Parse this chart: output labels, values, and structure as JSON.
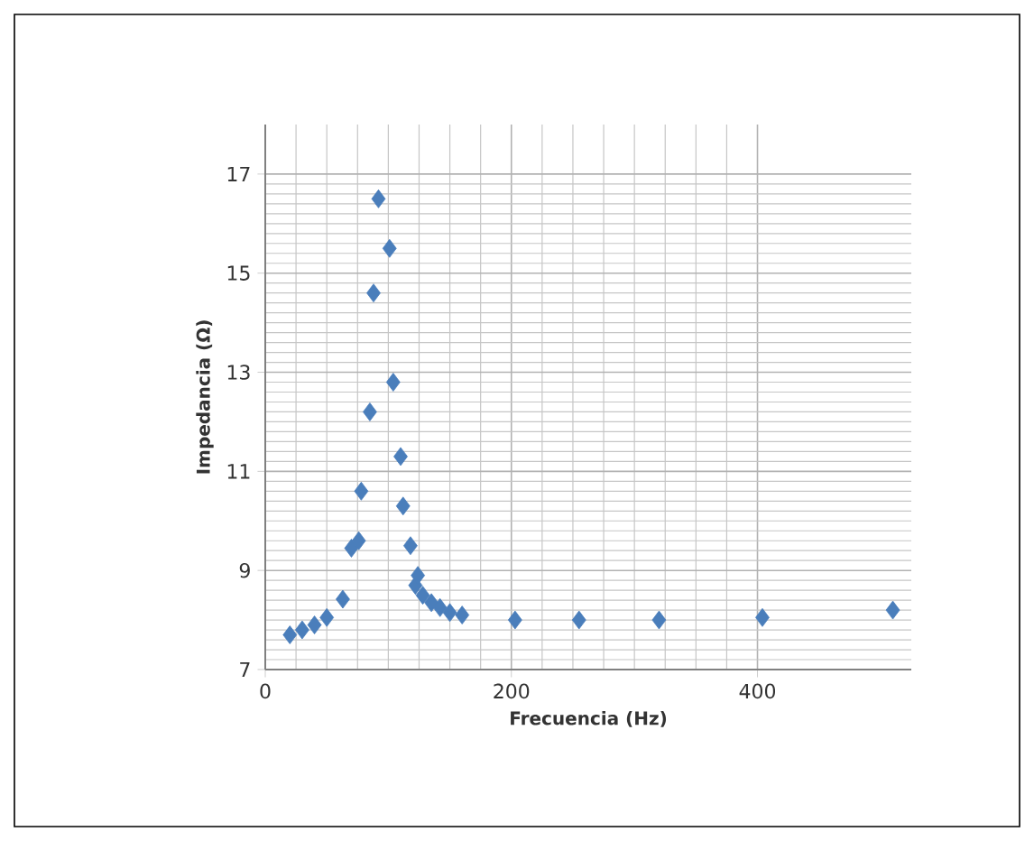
{
  "chart_data": {
    "type": "scatter",
    "xlabel": "Frecuencia (Hz)",
    "ylabel": "Impedancia (Ω)",
    "x": [
      20,
      30,
      40,
      50,
      63,
      70,
      76,
      78,
      85,
      88,
      92,
      101,
      104,
      110,
      112,
      118,
      122,
      124,
      128,
      135,
      142,
      150,
      160,
      203,
      255,
      320,
      404,
      510
    ],
    "series": [
      {
        "color": "#4a7ebb",
        "values": [
          7.7,
          7.8,
          7.9,
          8.05,
          8.42,
          9.45,
          9.6,
          10.6,
          12.2,
          14.6,
          16.5,
          15.5,
          12.8,
          11.3,
          10.3,
          9.5,
          8.7,
          8.9,
          8.5,
          8.35,
          8.25,
          8.15,
          8.1,
          8.0,
          8.0,
          8.0,
          8.05,
          8.2
        ]
      }
    ],
    "xlim": [
      0,
      525
    ],
    "xticks": [
      0,
      200,
      400
    ],
    "ylim": [
      7,
      18
    ],
    "yticks": [
      7,
      9,
      11,
      13,
      15,
      17
    ],
    "grid": true,
    "marker": "diamond"
  }
}
